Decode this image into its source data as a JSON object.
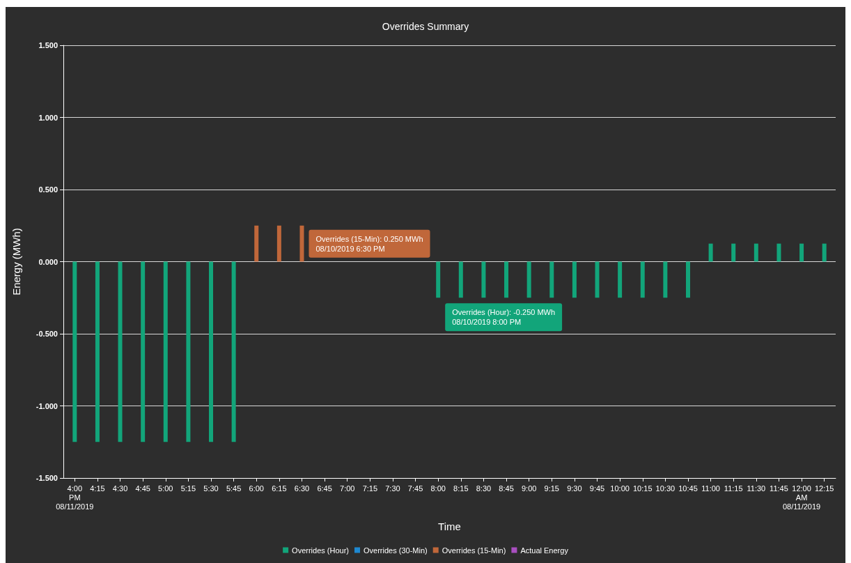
{
  "chart_data": {
    "type": "bar",
    "title": "Overrides Summary",
    "xlabel": "Time",
    "ylabel": "Energy (MWh)",
    "categories": [
      "4:00\nPM\n08/11/2019",
      "4:15",
      "4:30",
      "4:45",
      "5:00",
      "5:15",
      "5:30",
      "5:45",
      "6:00",
      "6:15",
      "6:30",
      "6:45",
      "7:00",
      "7:15",
      "7:30",
      "7:45",
      "8:00",
      "8:15",
      "8:30",
      "8:45",
      "9:00",
      "9:15",
      "9:30",
      "9:45",
      "10:00",
      "10:15",
      "10:30",
      "10:45",
      "11:00",
      "11:15",
      "11:30",
      "11:45",
      "12:00\nAM\n08/11/2019",
      "12:15"
    ],
    "series": [
      {
        "name": "Overrides (Hour)",
        "color": "#12a57a",
        "values": [
          -1.25,
          -1.25,
          -1.25,
          -1.25,
          -1.25,
          -1.25,
          -1.25,
          -1.25,
          null,
          null,
          null,
          null,
          null,
          null,
          null,
          null,
          -0.25,
          -0.25,
          -0.25,
          -0.25,
          -0.25,
          -0.25,
          -0.25,
          -0.25,
          -0.25,
          -0.25,
          -0.25,
          -0.25,
          0.125,
          0.125,
          0.125,
          0.125,
          0.125,
          0.125
        ]
      },
      {
        "name": "Overrides (30-Min)",
        "color": "#1e88d0",
        "values": [
          null,
          null,
          null,
          null,
          null,
          null,
          null,
          null,
          null,
          null,
          null,
          null,
          null,
          null,
          null,
          null,
          null,
          null,
          null,
          null,
          null,
          null,
          null,
          null,
          null,
          null,
          null,
          null,
          null,
          null,
          null,
          null,
          null,
          null
        ]
      },
      {
        "name": "Overrides (15-Min)",
        "color": "#c0673a",
        "values": [
          null,
          null,
          null,
          null,
          null,
          null,
          null,
          null,
          0.25,
          0.25,
          0.25,
          null,
          null,
          null,
          null,
          null,
          null,
          null,
          null,
          null,
          null,
          null,
          null,
          null,
          null,
          null,
          null,
          null,
          null,
          null,
          null,
          null,
          null,
          null
        ]
      },
      {
        "name": "Actual Energy",
        "color": "#a94fc0",
        "values": [
          null,
          null,
          null,
          null,
          null,
          null,
          null,
          null,
          null,
          null,
          null,
          null,
          null,
          null,
          null,
          null,
          null,
          null,
          null,
          null,
          null,
          null,
          null,
          null,
          null,
          null,
          null,
          null,
          null,
          null,
          null,
          null,
          null,
          null
        ]
      }
    ],
    "ylim": [
      -1.5,
      1.5
    ],
    "yticks": [
      {
        "value": -1.5,
        "label": "-1.500"
      },
      {
        "value": -1,
        "label": "-1.000"
      },
      {
        "value": -0.5,
        "label": "-0.500"
      },
      {
        "value": 0,
        "label": "0.000"
      },
      {
        "value": 0.5,
        "label": "0.500"
      },
      {
        "value": 1,
        "label": "1.000"
      },
      {
        "value": 1.5,
        "label": "1.500"
      }
    ],
    "grid": "y",
    "legend": "bottom",
    "annotations": [
      {
        "text": "Overrides (15-Min): 0.250 MWh\n08/10/2019 6:30 PM",
        "x": "6:30",
        "y": 0.25
      },
      {
        "text": "Overrides (Hour): -0.250 MWh\n08/10/2019 8:00 PM",
        "x": "8:00",
        "y": -0.25
      }
    ]
  }
}
